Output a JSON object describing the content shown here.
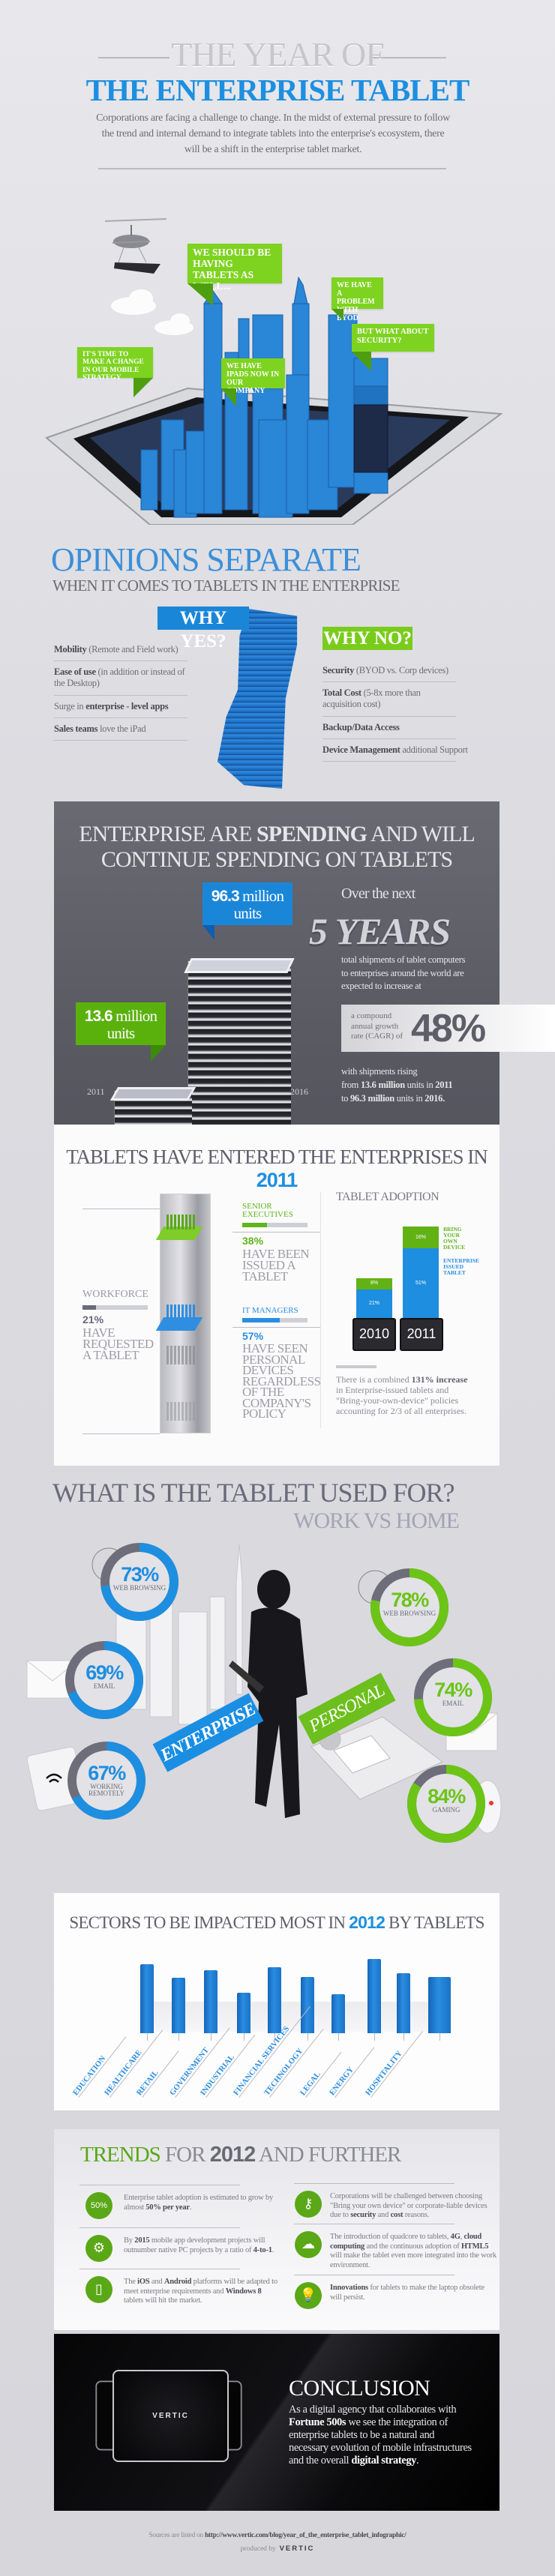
{
  "header": {
    "title_line1": "THE YEAR OF",
    "title_line2": "THE ENTERPRISE TABLET",
    "intro": "Corporations are facing a challenge to change. In the midst of external pressure to follow the trend and internal demand to integrate tablets into the enterprise's ecosystem, there will be a shift in the enterprise tablet market."
  },
  "hero": {
    "bubbles": [
      "We should be having tablets as well...",
      "We have a problem with BYOD",
      "But what about security?",
      "It's time to make a change in our mobile strategy",
      "We have iPads now in our company"
    ]
  },
  "opinions": {
    "title": "OPINIONS SEPARATE",
    "subtitle": "WHEN IT COMES TO TABLETS IN THE ENTERPRISE",
    "yes_label": "WHY YES?",
    "no_label": "WHY NO?",
    "yes_items": [
      {
        "pre": "",
        "bold": "Mobility",
        "rest": " (Remote and Field work)"
      },
      {
        "pre": "",
        "bold": "Ease of use",
        "rest": " (in addition or instead of the Desktop)"
      },
      {
        "pre": "Surge in ",
        "bold": "enterprise - level apps",
        "rest": ""
      },
      {
        "pre": "",
        "bold": "Sales teams",
        "rest": " love the iPad"
      }
    ],
    "no_items": [
      {
        "pre": "",
        "bold": "Security",
        "rest": " (BYOD vs. Corp devices)"
      },
      {
        "pre": "",
        "bold": "Total Cost",
        "rest": " (5-8x more than acquisition cost)"
      },
      {
        "pre": "",
        "bold": "Backup/Data Access",
        "rest": ""
      },
      {
        "pre": "",
        "bold": "Device Management",
        "rest": " additional Support"
      }
    ]
  },
  "spending": {
    "headline_pre": "ENTERPRISE ARE ",
    "headline_bold": "SPENDING",
    "headline_post": " AND WILL",
    "headline_line2": "CONTINUE SPENDING ON TABLETS",
    "box_2016_num": "96.3",
    "box_2016_rest": " million units",
    "box_2011_num": "13.6",
    "box_2011_rest": " million units",
    "year_start": "2011",
    "year_end": "2016",
    "over_next": "Over the next",
    "years": "5 YEARS",
    "paragraph": "total shipments of tablet computers to enterprises around the world are expected to increase at",
    "cagr_label": "a compound annual growth rate (CAGR) of",
    "cagr_value": "48%",
    "rising_1": "with shipments rising",
    "rising_2_pre": "from ",
    "rising_2_b1": "13.6 million",
    "rising_2_mid": " units in ",
    "rising_2_b2": "2011",
    "rising_3_pre": "to ",
    "rising_3_b1": "96.3 million",
    "rising_3_mid": " units in ",
    "rising_3_b2": "2016."
  },
  "entered": {
    "title_pre": "TABLETS HAVE ENTERED THE ENTERPRISES IN ",
    "title_year": "2011",
    "workforce": {
      "label": "WORKFORCE",
      "pct": "21%",
      "value": 21,
      "text": "HAVE REQUESTED A TABLET"
    },
    "senior": {
      "label": "SENIOR EXECUTIVES",
      "pct": "38%",
      "value": 38,
      "text": "HAVE BEEN ISSUED A TABLET"
    },
    "it": {
      "label": "IT MANAGERS",
      "pct": "57%",
      "value": 57,
      "text": "HAVE SEEN PERSONAL DEVICES REGARDLESS OF THE COMPANY'S POLICY"
    },
    "adoption_title": "TABLET ADOPTION",
    "note_pre": "There is a combined ",
    "note_bold": "131% increase",
    "note_rest": " in Enterprise-issued tablets and \"Bring-your-own-device\" policies accounting for 2/3 of all enterprises."
  },
  "chart_data": {
    "type": "bar",
    "stacked": true,
    "title": "TABLET ADOPTION",
    "categories": [
      "2010",
      "2011"
    ],
    "series": [
      {
        "name": "ENTERPRISE ISSUED TABLET",
        "values": [
          21,
          51
        ],
        "labels": [
          "21%",
          "51%"
        ],
        "color": "#1e8ee0"
      },
      {
        "name": "BRING YOUR OWN DEVICE",
        "values": [
          8,
          16
        ],
        "labels": [
          "8%",
          "16%"
        ],
        "color": "#62b216"
      }
    ],
    "unit": "%"
  },
  "usage": {
    "title": "WHAT IS THE TABLET USED FOR?",
    "subtitle": "WORK VS HOME",
    "enterprise_label": "ENTERPRISE",
    "personal_label": "PERSONAL",
    "enterprise": [
      {
        "pct": "73%",
        "value": 73,
        "label": "WEB BROWSING",
        "icon": "globe-icon"
      },
      {
        "pct": "69%",
        "value": 69,
        "label": "EMAIL",
        "icon": "envelope-icon"
      },
      {
        "pct": "67%",
        "value": 67,
        "label": "WORKING REMOTELY",
        "icon": "wifi-router-icon"
      }
    ],
    "personal": [
      {
        "pct": "78%",
        "value": 78,
        "label": "WEB BROWSING",
        "icon": "globe-icon"
      },
      {
        "pct": "74%",
        "value": 74,
        "label": "EMAIL",
        "icon": "envelope-icon"
      },
      {
        "pct": "84%",
        "value": 84,
        "label": "GAMING",
        "icon": "gamepad-icon"
      }
    ],
    "colors": {
      "enterprise": "#1e8ee0",
      "personal": "#6cc417",
      "remainder": "#6e6e7a"
    }
  },
  "sectors": {
    "title_pre": "SECTORS TO BE IMPACTED MOST IN ",
    "title_year": "2012",
    "title_post": " BY TABLETS",
    "items": [
      "EDUCATION",
      "HEALTHCARE",
      "RETAIL",
      "GOVERNMENT",
      "INDUSTRIAL",
      "FINANCIAL SERVICES",
      "TECHNOLOGY",
      "LEGAL",
      "ENERGY",
      "HOSPITALITY"
    ]
  },
  "trends": {
    "title_green": "TRENDS",
    "title_mid": " FOR ",
    "title_year": "2012",
    "title_post": " AND FURTHER",
    "left": [
      {
        "icon_text": "50%",
        "icon": "growth-arrow-icon",
        "parts": [
          [
            "",
            "Enterprise tablet adoption is estimated to grow by almost "
          ],
          [
            "b",
            "50% per year"
          ],
          [
            "",
            "."
          ]
        ]
      },
      {
        "icon_text": "⚙",
        "icon": "gears-icon",
        "parts": [
          [
            "",
            "By "
          ],
          [
            "b",
            "2015"
          ],
          [
            "",
            " mobile app development projects will outnumber native PC projects by a ratio of "
          ],
          [
            "b",
            "4-to-1"
          ],
          [
            "",
            "."
          ]
        ]
      },
      {
        "icon_text": "▯",
        "icon": "tablet-icon",
        "parts": [
          [
            "",
            "The "
          ],
          [
            "b",
            "iOS"
          ],
          [
            "",
            " and "
          ],
          [
            "b",
            "Android"
          ],
          [
            "",
            " platforms will be adapted to meet enterprise requirements and "
          ],
          [
            "b",
            "Windows 8"
          ],
          [
            "",
            " tablets will hit the market."
          ]
        ]
      }
    ],
    "right": [
      {
        "icon_text": "⚷",
        "icon": "key-icon",
        "parts": [
          [
            "",
            "Corporations will be challenged between choosing \"Bring your own device\" or corporate-liable devices due to "
          ],
          [
            "b",
            "security"
          ],
          [
            "",
            " and "
          ],
          [
            "b",
            "cost"
          ],
          [
            "",
            " reasons."
          ]
        ]
      },
      {
        "icon_text": "☁",
        "icon": "cloud-upload-icon",
        "parts": [
          [
            "",
            "The introduction of quadcore to tablets, "
          ],
          [
            "b",
            "4G"
          ],
          [
            "",
            ", "
          ],
          [
            "b",
            "cloud computing"
          ],
          [
            "",
            " and the continuous adoption of "
          ],
          [
            "b",
            "HTML5"
          ],
          [
            "",
            " will make the tablet even more integrated into the work environment."
          ]
        ]
      },
      {
        "icon_text": "💡",
        "icon": "lightbulb-icon",
        "parts": [
          [
            "b",
            "Innovations"
          ],
          [
            "",
            " for tablets to make the laptop obsolete will persist."
          ]
        ]
      }
    ]
  },
  "conclusion": {
    "title": "CONCLUSION",
    "logo": "VERTIC",
    "p1": "As a digital agency that collaborates with ",
    "p_bold1": "Fortune 500s",
    "p2": " we see the integration of enterprise tablets to be a natural and necessary evolution of mobile infrastructures and the overall ",
    "p_bold2": "digital strategy",
    "p3": "."
  },
  "footer": {
    "sources_pre": "Sources are listed on ",
    "sources_url": "http://www.vertic.com/blog/year_of_the_enterprise_tablet_infographic/",
    "produced_by": "produced by",
    "logo": "VERTIC"
  }
}
